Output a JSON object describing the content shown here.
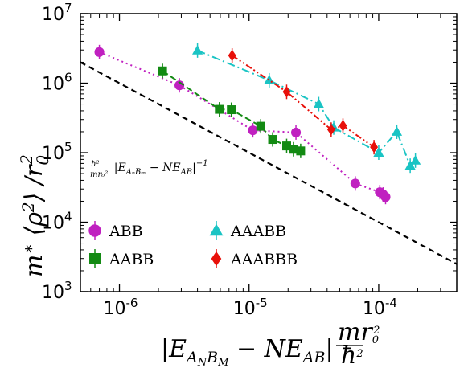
{
  "chart_data": {
    "type": "scatter",
    "x_scale": "log",
    "y_scale": "log",
    "xlim": [
      5e-07,
      0.0004
    ],
    "ylim": [
      1000,
      10000000
    ],
    "grid": false,
    "legend_position": "lower-left",
    "xlabel": "|E_{A_N B_M} − N E_{AB}| m r_0^2 / ħ^2",
    "ylabel": "m* ⟨ρ²⟩ / r_0^2",
    "x_ticks": [
      {
        "value": 1e-06,
        "base": "10",
        "exp": "-6"
      },
      {
        "value": 1e-05,
        "base": "10",
        "exp": "-5"
      },
      {
        "value": 0.0001,
        "base": "10",
        "exp": "-4"
      }
    ],
    "y_ticks": [
      {
        "value": 1000,
        "base": "10",
        "exp": "3"
      },
      {
        "value": 10000,
        "base": "10",
        "exp": "4"
      },
      {
        "value": 100000,
        "base": "10",
        "exp": "5"
      },
      {
        "value": 1000000,
        "base": "10",
        "exp": "6"
      },
      {
        "value": 10000000,
        "base": "10",
        "exp": "7"
      }
    ],
    "reference_line": {
      "label": "ħ²/(m r_0²) |E_{A_N B_M} − N E_{AB}|^{-1}",
      "style": "dashed",
      "color": "#000000",
      "x": [
        5e-07,
        0.0004
      ],
      "y": [
        2000000,
        2500
      ]
    },
    "series": [
      {
        "name": "ABB",
        "color": "#c020c0",
        "marker": "circle",
        "linestyle": "dotted",
        "points": [
          [
            7e-07,
            2800000
          ],
          [
            2.9e-06,
            930000
          ],
          [
            1.07e-05,
            210000
          ],
          [
            2.3e-05,
            195000
          ],
          [
            6.6e-05,
            36000
          ],
          [
            0.000102,
            27000
          ],
          [
            0.000108,
            25000
          ],
          [
            0.000113,
            23000
          ]
        ]
      },
      {
        "name": "AABB",
        "color": "#138a13",
        "marker": "square",
        "linestyle": "dashed",
        "points": [
          [
            2.15e-06,
            1500000
          ],
          [
            5.9e-06,
            420000
          ],
          [
            7.3e-06,
            415000
          ],
          [
            1.23e-05,
            240000
          ],
          [
            1.52e-05,
            155000
          ],
          [
            1.95e-05,
            125000
          ],
          [
            2.2e-05,
            112000
          ],
          [
            2.5e-05,
            106000
          ]
        ]
      },
      {
        "name": "AAABB",
        "color": "#1ac4c4",
        "marker": "triangle",
        "linestyle": "dashdot",
        "points": [
          [
            4e-06,
            2950000
          ],
          [
            1.43e-05,
            1100000
          ],
          [
            3.45e-05,
            500000
          ],
          [
            4.5e-05,
            230000
          ],
          [
            0.0001,
            100000
          ],
          [
            0.000138,
            200000
          ],
          [
            0.000175,
            65000
          ],
          [
            0.000192,
            77000
          ]
        ]
      },
      {
        "name": "AAABBB",
        "color": "#e8100a",
        "marker": "diamond",
        "linestyle": "dashdotdot",
        "points": [
          [
            7.4e-06,
            2500000
          ],
          [
            1.95e-05,
            750000
          ],
          [
            4.3e-05,
            215000
          ],
          [
            5.3e-05,
            245000
          ],
          [
            9.2e-05,
            120000
          ]
        ]
      }
    ]
  }
}
